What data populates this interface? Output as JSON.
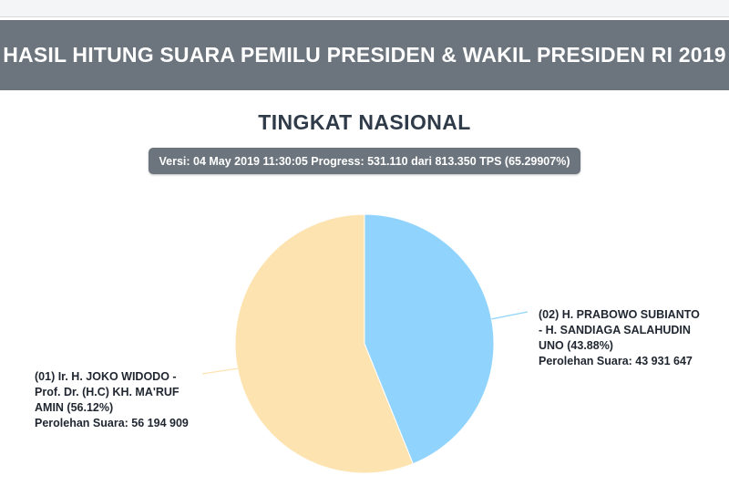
{
  "header": {
    "title": "HASIL HITUNG SUARA PEMILU PRESIDEN & WAKIL PRESIDEN RI 2019"
  },
  "subtitle": "TINGKAT NASIONAL",
  "version_info": "Versi: 04 May 2019 11:30:05 Progress: 531.110 dari 813.350 TPS (65.29907%)",
  "chart_data": {
    "type": "pie",
    "slices": [
      {
        "label_lines": [
          "(01) Ir. H. JOKO WIDODO -",
          "Prof. Dr. (H.C) KH. MA'RUF",
          "AMIN (56.12%)"
        ],
        "votes_text": "Perolehan Suara: 56 194 909",
        "votes": 56194909,
        "percent": 56.12,
        "color": "#fde3b0"
      },
      {
        "label_lines": [
          "(02) H. PRABOWO SUBIANTO",
          "- H. SANDIAGA SALAHUDIN",
          "UNO (43.88%)"
        ],
        "votes_text": "Perolehan Suara: 43 931 647",
        "votes": 43931647,
        "percent": 43.88,
        "color": "#90d4fd"
      }
    ]
  }
}
